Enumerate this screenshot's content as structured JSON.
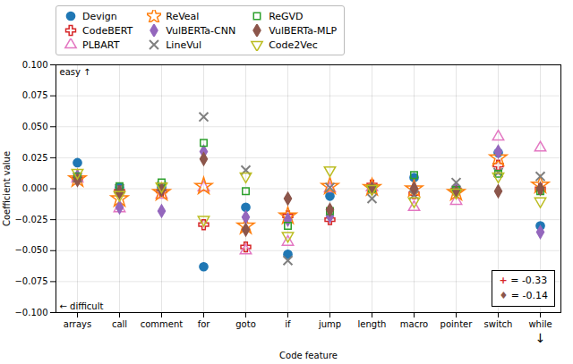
{
  "chart_data": {
    "type": "scatter",
    "xlabel": "Code feature",
    "ylabel": "Coefficient value",
    "categories": [
      "arrays",
      "call",
      "comment",
      "for",
      "goto",
      "if",
      "jump",
      "length",
      "macro",
      "pointer",
      "switch",
      "while"
    ],
    "ylim": [
      -0.1,
      0.1
    ],
    "yticks": [
      {
        "value": -0.1,
        "label": "−0.100"
      },
      {
        "value": -0.075,
        "label": "−0.075"
      },
      {
        "value": -0.05,
        "label": "−0.050"
      },
      {
        "value": -0.025,
        "label": "−0.025"
      },
      {
        "value": 0.0,
        "label": "0.000"
      },
      {
        "value": 0.025,
        "label": "0.025"
      },
      {
        "value": 0.05,
        "label": "0.050"
      },
      {
        "value": 0.075,
        "label": "0.075"
      },
      {
        "value": 0.1,
        "label": "0.100"
      }
    ],
    "grid": true,
    "legend": "top",
    "series": [
      {
        "name": "Devign",
        "color": "#1f77b4",
        "marker": "circle",
        "values": [
          0.021,
          0.001,
          0.001,
          -0.063,
          -0.015,
          -0.053,
          -0.006,
          0.0,
          0.009,
          0.0,
          0.029,
          -0.03
        ]
      },
      {
        "name": "CodeBERT",
        "color": "#d62728",
        "marker": "plus-open",
        "values": [
          0.008,
          -0.002,
          -0.002,
          -0.029,
          -0.047,
          -0.022,
          -0.025,
          0.003,
          -0.004,
          -0.001,
          0.019,
          0.0
        ]
      },
      {
        "name": "PLBART",
        "color": "#e377c2",
        "marker": "triangle-up-open",
        "values": [
          0.008,
          -0.016,
          -0.005,
          0.001,
          -0.05,
          -0.043,
          0.0,
          0.001,
          -0.015,
          -0.01,
          0.042,
          0.033
        ]
      },
      {
        "name": "ReVeal",
        "color": "#ff7f0e",
        "marker": "star-open",
        "values": [
          0.008,
          -0.008,
          -0.003,
          0.002,
          -0.03,
          -0.022,
          0.002,
          0.001,
          0.0,
          -0.003,
          0.025,
          0.003
        ]
      },
      {
        "name": "VulBERTa-CNN",
        "color": "#9467bd",
        "marker": "diamond",
        "values": [
          0.01,
          -0.015,
          -0.018,
          0.03,
          -0.023,
          -0.025,
          -0.022,
          0.0,
          0.0,
          0.0,
          0.03,
          -0.035
        ]
      },
      {
        "name": "LineVul",
        "color": "#7f7f7f",
        "marker": "x",
        "values": [
          0.009,
          0.0,
          0.002,
          0.058,
          0.015,
          -0.058,
          0.001,
          -0.008,
          -0.005,
          0.005,
          0.013,
          0.01
        ]
      },
      {
        "name": "ReGVD",
        "color": "#2ca02c",
        "marker": "square-open",
        "values": [
          0.01,
          0.002,
          0.005,
          0.037,
          -0.002,
          -0.03,
          -0.018,
          0.0,
          0.011,
          -0.001,
          0.012,
          -0.002
        ]
      },
      {
        "name": "VulBERTa-MLP",
        "color": "#8c564b",
        "marker": "diamond",
        "values": [
          0.007,
          -0.003,
          -0.001,
          0.024,
          -0.033,
          -0.008,
          -0.017,
          0.0,
          0.0,
          -0.003,
          -0.002,
          0.0
        ]
      },
      {
        "name": "Code2Vec",
        "color": "#bcbd22",
        "marker": "triangle-down-open",
        "values": [
          0.013,
          -0.005,
          0.002,
          -0.025,
          0.01,
          -0.038,
          0.015,
          0.0,
          -0.01,
          -0.003,
          0.01,
          -0.01
        ]
      }
    ],
    "annotations": [
      {
        "text": "easy ↑"
      },
      {
        "text": "← difficult"
      },
      {
        "text": "↓",
        "category": "while"
      }
    ],
    "inset": [
      {
        "symbol": "+",
        "color": "#d62728",
        "text": " = -0.33"
      },
      {
        "symbol": "♦",
        "color": "#8c564b",
        "text": " = -0.14"
      }
    ]
  }
}
